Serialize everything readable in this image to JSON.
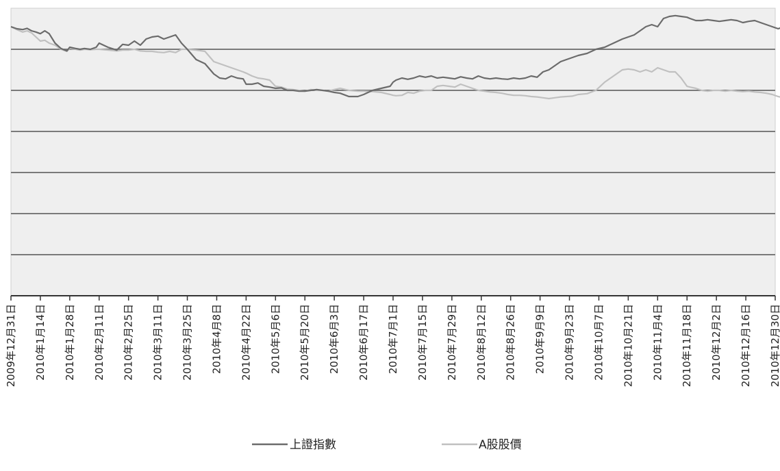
{
  "chart_data": {
    "type": "line",
    "title": "",
    "xlabel": "",
    "ylabel": "",
    "grid": true,
    "y_axis_labels_shown": false,
    "ylim": [
      0,
      7
    ],
    "legend_position": "bottom-center",
    "colors": {
      "plot_background": "#efefef",
      "gridline": "#7a7a7a",
      "axis": "#333333"
    },
    "categories": [
      "2009年12月31日",
      "2010年1月14日",
      "2010年1月28日",
      "2010年2月11日",
      "2010年2月25日",
      "2010年3月11日",
      "2010年3月25日",
      "2010年4月8日",
      "2010年4月22日",
      "2010年5月6日",
      "2010年5月20日",
      "2010年6月3日",
      "2010年6月17日",
      "2010年7月1日",
      "2010年7月15日",
      "2010年7月29日",
      "2010年8月12日",
      "2010年8月26日",
      "2010年9月9日",
      "2010年9月23日",
      "2010年10月7日",
      "2010年10月21日",
      "2010年11月4日",
      "2010年11月18日",
      "2010年12月2日",
      "2010年12月16日",
      "2010年12月30日"
    ],
    "series": [
      {
        "name": "上證指數",
        "color": "#6b6b6b",
        "x": [
          0,
          0.2,
          0.4,
          0.55,
          0.7,
          0.85,
          1.0,
          1.15,
          1.3,
          1.5,
          1.7,
          1.9,
          2.0,
          2.2,
          2.35,
          2.5,
          2.7,
          2.9,
          3.0,
          3.3,
          3.6,
          3.8,
          4.0,
          4.2,
          4.4,
          4.6,
          4.8,
          5.0,
          5.2,
          5.4,
          5.6,
          5.8,
          6.0,
          6.3,
          6.6,
          6.9,
          7.1,
          7.3,
          7.5,
          7.7,
          7.9,
          8.0,
          8.2,
          8.4,
          8.6,
          8.8,
          9.0,
          9.2,
          9.4,
          9.6,
          9.8,
          10.0,
          10.2,
          10.4,
          10.6,
          10.8,
          11.0,
          11.2,
          11.5,
          11.8,
          12.0,
          12.3,
          12.6,
          12.9,
          13.0,
          13.1,
          13.3,
          13.5,
          13.7,
          13.9,
          14.1,
          14.3,
          14.5,
          14.7,
          14.9,
          15.1,
          15.3,
          15.5,
          15.7,
          15.9,
          16.1,
          16.3,
          16.5,
          16.7,
          16.9,
          17.1,
          17.3,
          17.5,
          17.7,
          17.9,
          18.1,
          18.3,
          18.5,
          18.7,
          18.9,
          19.1,
          19.3,
          19.6,
          19.9,
          20.2,
          20.5,
          20.8,
          21.0,
          21.2,
          21.4,
          21.6,
          21.8,
          22.0,
          22.2,
          22.4,
          22.6,
          22.8,
          23.0,
          23.1,
          23.3,
          23.5,
          23.7,
          23.9,
          24.1,
          24.3,
          24.5,
          24.7,
          24.9,
          25.1,
          25.3,
          25.5,
          25.7,
          25.9,
          26.1,
          26.3
        ],
        "values": [
          6.55,
          6.5,
          6.48,
          6.51,
          6.45,
          6.42,
          6.38,
          6.45,
          6.38,
          6.15,
          6.02,
          5.96,
          6.05,
          6.02,
          6.0,
          6.02,
          6.0,
          6.05,
          6.15,
          6.05,
          5.98,
          6.12,
          6.1,
          6.2,
          6.1,
          6.25,
          6.3,
          6.32,
          6.25,
          6.3,
          6.35,
          6.15,
          6.0,
          5.75,
          5.65,
          5.4,
          5.3,
          5.28,
          5.35,
          5.3,
          5.28,
          5.15,
          5.15,
          5.18,
          5.1,
          5.08,
          5.05,
          5.06,
          5.0,
          5.0,
          4.98,
          4.98,
          5.0,
          5.02,
          5.0,
          4.98,
          4.95,
          4.93,
          4.85,
          4.85,
          4.9,
          5.0,
          5.05,
          5.1,
          5.2,
          5.25,
          5.3,
          5.27,
          5.3,
          5.35,
          5.32,
          5.35,
          5.3,
          5.32,
          5.3,
          5.28,
          5.33,
          5.3,
          5.28,
          5.35,
          5.3,
          5.28,
          5.3,
          5.28,
          5.27,
          5.3,
          5.28,
          5.3,
          5.35,
          5.32,
          5.45,
          5.5,
          5.6,
          5.7,
          5.75,
          5.8,
          5.85,
          5.9,
          6.0,
          6.05,
          6.15,
          6.25,
          6.3,
          6.35,
          6.45,
          6.55,
          6.6,
          6.55,
          6.75,
          6.8,
          6.82,
          6.8,
          6.78,
          6.75,
          6.7,
          6.7,
          6.72,
          6.7,
          6.68,
          6.7,
          6.72,
          6.7,
          6.65,
          6.68,
          6.7,
          6.65,
          6.6,
          6.55,
          6.5,
          6.55
        ]
      },
      {
        "name": "A股股價",
        "color": "#c0c0c0",
        "x": [
          0,
          0.2,
          0.4,
          0.55,
          0.7,
          0.85,
          1.0,
          1.15,
          1.3,
          1.5,
          1.7,
          1.9,
          2.0,
          2.2,
          2.35,
          2.5,
          2.7,
          2.9,
          3.0,
          3.3,
          3.6,
          3.8,
          4.0,
          4.2,
          4.4,
          4.6,
          4.8,
          5.0,
          5.2,
          5.4,
          5.6,
          5.8,
          6.0,
          6.3,
          6.6,
          6.9,
          7.1,
          7.3,
          7.5,
          7.7,
          7.9,
          8.0,
          8.2,
          8.4,
          8.6,
          8.8,
          9.0,
          9.2,
          9.4,
          9.6,
          9.8,
          10.0,
          10.2,
          10.4,
          10.6,
          10.8,
          11.0,
          11.2,
          11.5,
          11.8,
          12.0,
          12.3,
          12.6,
          12.9,
          13.0,
          13.1,
          13.3,
          13.5,
          13.7,
          13.9,
          14.1,
          14.3,
          14.5,
          14.7,
          14.9,
          15.1,
          15.3,
          15.5,
          15.7,
          15.9,
          16.1,
          16.3,
          16.5,
          16.7,
          16.9,
          17.1,
          17.3,
          17.5,
          17.7,
          17.9,
          18.1,
          18.3,
          18.5,
          18.7,
          18.9,
          19.1,
          19.3,
          19.6,
          19.9,
          20.2,
          20.5,
          20.8,
          21.0,
          21.2,
          21.4,
          21.6,
          21.8,
          22.0,
          22.2,
          22.4,
          22.6,
          22.8,
          23.0,
          23.1,
          23.3,
          23.5,
          23.7,
          23.9,
          24.1,
          24.3,
          24.5,
          24.7,
          24.9,
          25.1,
          25.3,
          25.5,
          25.7,
          25.9,
          26.1,
          26.3
        ],
        "values": [
          6.55,
          6.48,
          6.42,
          6.45,
          6.4,
          6.3,
          6.2,
          6.22,
          6.15,
          6.1,
          6.0,
          5.95,
          6.02,
          6.0,
          5.98,
          6.0,
          5.99,
          6.0,
          6.0,
          5.98,
          5.96,
          5.98,
          5.98,
          6.0,
          5.96,
          5.95,
          5.95,
          5.93,
          5.92,
          5.95,
          5.92,
          6.0,
          6.0,
          5.98,
          5.95,
          5.7,
          5.65,
          5.6,
          5.55,
          5.5,
          5.45,
          5.42,
          5.35,
          5.3,
          5.28,
          5.25,
          5.1,
          5.08,
          5.03,
          5.02,
          5.0,
          4.98,
          5.02,
          5.0,
          5.0,
          4.98,
          5.02,
          5.05,
          5.0,
          4.98,
          4.98,
          4.97,
          4.95,
          4.9,
          4.88,
          4.87,
          4.88,
          4.95,
          4.93,
          4.98,
          5.0,
          5.0,
          5.1,
          5.12,
          5.1,
          5.08,
          5.15,
          5.1,
          5.05,
          5.0,
          4.98,
          4.96,
          4.95,
          4.93,
          4.9,
          4.88,
          4.88,
          4.87,
          4.85,
          4.84,
          4.82,
          4.8,
          4.82,
          4.84,
          4.85,
          4.86,
          4.9,
          4.92,
          5.0,
          5.2,
          5.35,
          5.5,
          5.52,
          5.5,
          5.45,
          5.5,
          5.45,
          5.55,
          5.5,
          5.45,
          5.45,
          5.3,
          5.1,
          5.08,
          5.05,
          5.0,
          4.98,
          5.0,
          5.0,
          4.98,
          5.0,
          4.98,
          4.97,
          4.98,
          4.96,
          4.95,
          4.93,
          4.9,
          4.85,
          4.82
        ]
      }
    ]
  }
}
